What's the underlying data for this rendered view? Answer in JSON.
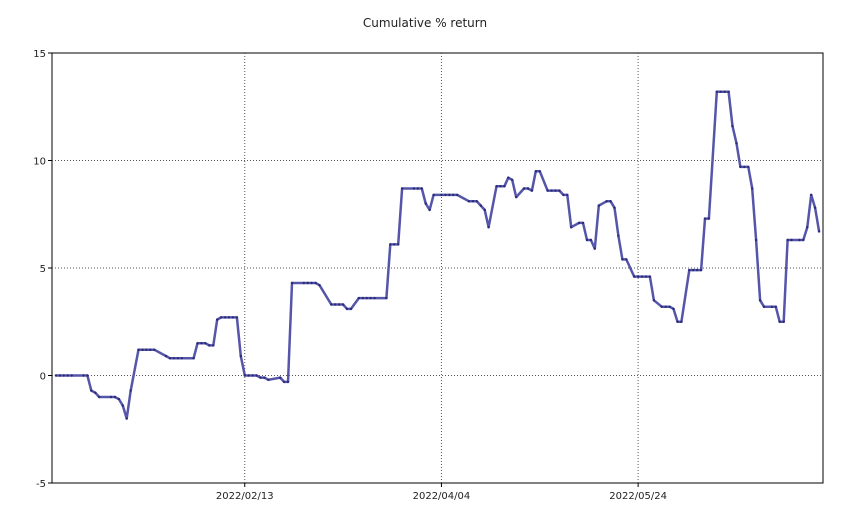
{
  "chart_data": {
    "type": "line",
    "title": "Cumulative % return",
    "xlabel": "",
    "ylabel": "",
    "ylim": [
      -5,
      15
    ],
    "yticks": [
      -5,
      0,
      5,
      10,
      15
    ],
    "xticks": [
      "2022/02/13",
      "2022/04/04",
      "2022/05/24"
    ],
    "xlim": [
      "2021-12-26",
      "2022-07-10"
    ],
    "grid": true,
    "line_color": "#5555aa",
    "series": [
      {
        "points": [
          [
            "2021-12-27",
            0.0
          ],
          [
            "2021-12-28",
            0.0
          ],
          [
            "2021-12-29",
            0.0
          ],
          [
            "2021-12-30",
            0.0
          ],
          [
            "2021-12-31",
            0.0
          ],
          [
            "2022-01-03",
            0.0
          ],
          [
            "2022-01-04",
            0.0
          ],
          [
            "2022-01-05",
            -0.7
          ],
          [
            "2022-01-06",
            -0.8
          ],
          [
            "2022-01-07",
            -1.0
          ],
          [
            "2022-01-10",
            -1.0
          ],
          [
            "2022-01-11",
            -1.0
          ],
          [
            "2022-01-12",
            -1.1
          ],
          [
            "2022-01-13",
            -1.4
          ],
          [
            "2022-01-14",
            -2.0
          ],
          [
            "2022-01-15",
            -0.7
          ],
          [
            "2022-01-17",
            1.2
          ],
          [
            "2022-01-18",
            1.2
          ],
          [
            "2022-01-19",
            1.2
          ],
          [
            "2022-01-20",
            1.2
          ],
          [
            "2022-01-21",
            1.2
          ],
          [
            "2022-01-24",
            0.9
          ],
          [
            "2022-01-25",
            0.8
          ],
          [
            "2022-01-26",
            0.8
          ],
          [
            "2022-01-27",
            0.8
          ],
          [
            "2022-01-28",
            0.8
          ],
          [
            "2022-01-31",
            0.8
          ],
          [
            "2022-02-01",
            1.5
          ],
          [
            "2022-02-02",
            1.5
          ],
          [
            "2022-02-03",
            1.5
          ],
          [
            "2022-02-04",
            1.4
          ],
          [
            "2022-02-05",
            1.4
          ],
          [
            "2022-02-06",
            2.6
          ],
          [
            "2022-02-07",
            2.7
          ],
          [
            "2022-02-08",
            2.7
          ],
          [
            "2022-02-09",
            2.7
          ],
          [
            "2022-02-10",
            2.7
          ],
          [
            "2022-02-11",
            2.7
          ],
          [
            "2022-02-12",
            0.9
          ],
          [
            "2022-02-13",
            0.0
          ],
          [
            "2022-02-14",
            0.0
          ],
          [
            "2022-02-15",
            0.0
          ],
          [
            "2022-02-16",
            0.0
          ],
          [
            "2022-02-17",
            -0.1
          ],
          [
            "2022-02-18",
            -0.1
          ],
          [
            "2022-02-19",
            -0.2
          ],
          [
            "2022-02-22",
            -0.1
          ],
          [
            "2022-02-23",
            -0.3
          ],
          [
            "2022-02-24",
            -0.3
          ],
          [
            "2022-02-25",
            4.3
          ],
          [
            "2022-02-28",
            4.3
          ],
          [
            "2022-03-01",
            4.3
          ],
          [
            "2022-03-02",
            4.3
          ],
          [
            "2022-03-03",
            4.3
          ],
          [
            "2022-03-04",
            4.2
          ],
          [
            "2022-03-07",
            3.3
          ],
          [
            "2022-03-08",
            3.3
          ],
          [
            "2022-03-09",
            3.3
          ],
          [
            "2022-03-10",
            3.3
          ],
          [
            "2022-03-11",
            3.1
          ],
          [
            "2022-03-12",
            3.1
          ],
          [
            "2022-03-14",
            3.6
          ],
          [
            "2022-03-15",
            3.6
          ],
          [
            "2022-03-16",
            3.6
          ],
          [
            "2022-03-17",
            3.6
          ],
          [
            "2022-03-18",
            3.6
          ],
          [
            "2022-03-21",
            3.6
          ],
          [
            "2022-03-22",
            6.1
          ],
          [
            "2022-03-23",
            6.1
          ],
          [
            "2022-03-24",
            6.1
          ],
          [
            "2022-03-25",
            8.7
          ],
          [
            "2022-03-28",
            8.7
          ],
          [
            "2022-03-29",
            8.7
          ],
          [
            "2022-03-30",
            8.7
          ],
          [
            "2022-03-31",
            8.0
          ],
          [
            "2022-04-01",
            7.7
          ],
          [
            "2022-04-02",
            8.4
          ],
          [
            "2022-04-04",
            8.4
          ],
          [
            "2022-04-05",
            8.4
          ],
          [
            "2022-04-06",
            8.4
          ],
          [
            "2022-04-07",
            8.4
          ],
          [
            "2022-04-08",
            8.4
          ],
          [
            "2022-04-11",
            8.1
          ],
          [
            "2022-04-12",
            8.1
          ],
          [
            "2022-04-13",
            8.1
          ],
          [
            "2022-04-14",
            7.9
          ],
          [
            "2022-04-15",
            7.7
          ],
          [
            "2022-04-16",
            6.9
          ],
          [
            "2022-04-18",
            8.8
          ],
          [
            "2022-04-19",
            8.8
          ],
          [
            "2022-04-20",
            8.8
          ],
          [
            "2022-04-21",
            9.2
          ],
          [
            "2022-04-22",
            9.1
          ],
          [
            "2022-04-23",
            8.3
          ],
          [
            "2022-04-25",
            8.7
          ],
          [
            "2022-04-26",
            8.7
          ],
          [
            "2022-04-27",
            8.6
          ],
          [
            "2022-04-28",
            9.5
          ],
          [
            "2022-04-29",
            9.5
          ],
          [
            "2022-05-01",
            8.6
          ],
          [
            "2022-05-02",
            8.6
          ],
          [
            "2022-05-03",
            8.6
          ],
          [
            "2022-05-04",
            8.6
          ],
          [
            "2022-05-05",
            8.4
          ],
          [
            "2022-05-06",
            8.4
          ],
          [
            "2022-05-07",
            6.9
          ],
          [
            "2022-05-09",
            7.1
          ],
          [
            "2022-05-10",
            7.1
          ],
          [
            "2022-05-11",
            6.3
          ],
          [
            "2022-05-12",
            6.3
          ],
          [
            "2022-05-13",
            5.9
          ],
          [
            "2022-05-14",
            7.9
          ],
          [
            "2022-05-16",
            8.1
          ],
          [
            "2022-05-17",
            8.1
          ],
          [
            "2022-05-18",
            7.8
          ],
          [
            "2022-05-19",
            6.5
          ],
          [
            "2022-05-20",
            5.4
          ],
          [
            "2022-05-21",
            5.4
          ],
          [
            "2022-05-23",
            4.6
          ],
          [
            "2022-05-24",
            4.6
          ],
          [
            "2022-05-25",
            4.6
          ],
          [
            "2022-05-26",
            4.6
          ],
          [
            "2022-05-27",
            4.6
          ],
          [
            "2022-05-28",
            3.5
          ],
          [
            "2022-05-30",
            3.2
          ],
          [
            "2022-05-31",
            3.2
          ],
          [
            "2022-06-01",
            3.2
          ],
          [
            "2022-06-02",
            3.1
          ],
          [
            "2022-06-03",
            2.5
          ],
          [
            "2022-06-04",
            2.5
          ],
          [
            "2022-06-06",
            4.9
          ],
          [
            "2022-06-07",
            4.9
          ],
          [
            "2022-06-08",
            4.9
          ],
          [
            "2022-06-09",
            4.9
          ],
          [
            "2022-06-10",
            7.3
          ],
          [
            "2022-06-11",
            7.3
          ],
          [
            "2022-06-13",
            13.2
          ],
          [
            "2022-06-14",
            13.2
          ],
          [
            "2022-06-15",
            13.2
          ],
          [
            "2022-06-16",
            13.2
          ],
          [
            "2022-06-17",
            11.6
          ],
          [
            "2022-06-18",
            10.8
          ],
          [
            "2022-06-19",
            9.7
          ],
          [
            "2022-06-20",
            9.7
          ],
          [
            "2022-06-21",
            9.7
          ],
          [
            "2022-06-22",
            8.7
          ],
          [
            "2022-06-23",
            6.3
          ],
          [
            "2022-06-24",
            3.5
          ],
          [
            "2022-06-25",
            3.2
          ],
          [
            "2022-06-27",
            3.2
          ],
          [
            "2022-06-28",
            3.2
          ],
          [
            "2022-06-29",
            2.5
          ],
          [
            "2022-06-30",
            2.5
          ],
          [
            "2022-07-01",
            6.3
          ],
          [
            "2022-07-02",
            6.3
          ],
          [
            "2022-07-04",
            6.3
          ],
          [
            "2022-07-05",
            6.3
          ],
          [
            "2022-07-06",
            6.9
          ],
          [
            "2022-07-07",
            8.4
          ],
          [
            "2022-07-08",
            7.8
          ],
          [
            "2022-07-09",
            6.7
          ]
        ]
      }
    ]
  }
}
